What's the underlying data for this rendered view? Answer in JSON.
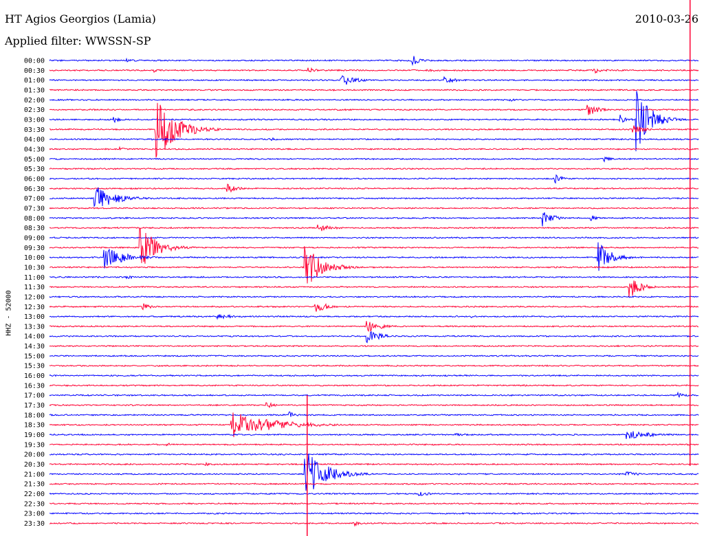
{
  "header": {
    "station": "HT Agios Georgios (Lamia)",
    "date": "2010-03-26",
    "filter": "Applied filter: WWSSN-SP"
  },
  "axis": {
    "channel_label": "HHZ - 52000"
  },
  "colors": {
    "series_a": "#0000ff",
    "series_b": "#ff0033",
    "cursor": "#ff0033"
  },
  "chart_data": {
    "type": "line",
    "title": "HT Agios Georgios (Lamia)",
    "subtitle": "Applied filter: WWSSN-SP",
    "ylabel": "HHZ - 52000",
    "grid": false,
    "rows": [
      "00:00",
      "00:30",
      "01:00",
      "01:30",
      "02:00",
      "02:30",
      "03:00",
      "03:30",
      "04:00",
      "04:30",
      "05:00",
      "05:30",
      "06:00",
      "06:30",
      "07:00",
      "07:30",
      "08:00",
      "08:30",
      "09:00",
      "09:30",
      "10:00",
      "10:30",
      "11:00",
      "11:30",
      "12:00",
      "12:30",
      "13:00",
      "13:30",
      "14:00",
      "14:30",
      "15:00",
      "15:30",
      "16:00",
      "16:30",
      "17:00",
      "17:30",
      "18:00",
      "18:30",
      "19:00",
      "19:30",
      "20:00",
      "20:30",
      "21:00",
      "21:30",
      "22:00",
      "22:30",
      "23:00",
      "23:30"
    ],
    "row_colors_cycle": [
      "blue",
      "red"
    ],
    "events": [
      {
        "row": 0,
        "x": 0.56,
        "amp": 1.0,
        "width": 0.01
      },
      {
        "row": 0,
        "x": 0.12,
        "amp": 0.3,
        "width": 0.02
      },
      {
        "row": 1,
        "x": 0.16,
        "amp": 0.4,
        "width": 0.01
      },
      {
        "row": 1,
        "x": 0.4,
        "amp": 0.6,
        "width": 0.01
      },
      {
        "row": 1,
        "x": 0.58,
        "amp": 0.3,
        "width": 0.02
      },
      {
        "row": 1,
        "x": 0.84,
        "amp": 0.6,
        "width": 0.015
      },
      {
        "row": 2,
        "x": 0.45,
        "amp": 1.2,
        "width": 0.02
      },
      {
        "row": 2,
        "x": 0.61,
        "amp": 0.6,
        "width": 0.02
      },
      {
        "row": 4,
        "x": 0.71,
        "amp": 0.3,
        "width": 0.01
      },
      {
        "row": 5,
        "x": 0.83,
        "amp": 1.2,
        "width": 0.015
      },
      {
        "row": 6,
        "x": 0.1,
        "amp": 0.6,
        "width": 0.01
      },
      {
        "row": 6,
        "x": 0.88,
        "amp": 0.9,
        "width": 0.01
      },
      {
        "row": 6,
        "x": 0.905,
        "amp": 6.0,
        "width": 0.02
      },
      {
        "row": 7,
        "x": 0.165,
        "amp": 5.5,
        "width": 0.03
      },
      {
        "row": 7,
        "x": 0.9,
        "amp": 1.0,
        "width": 0.015
      },
      {
        "row": 8,
        "x": 0.34,
        "amp": 0.4,
        "width": 0.01
      },
      {
        "row": 9,
        "x": 0.11,
        "amp": 0.4,
        "width": 0.01
      },
      {
        "row": 10,
        "x": 0.855,
        "amp": 0.5,
        "width": 0.01
      },
      {
        "row": 12,
        "x": 0.78,
        "amp": 0.8,
        "width": 0.01
      },
      {
        "row": 13,
        "x": 0.275,
        "amp": 0.8,
        "width": 0.015
      },
      {
        "row": 14,
        "x": 0.07,
        "amp": 2.5,
        "width": 0.03
      },
      {
        "row": 16,
        "x": 0.76,
        "amp": 1.8,
        "width": 0.015
      },
      {
        "row": 16,
        "x": 0.835,
        "amp": 0.6,
        "width": 0.01
      },
      {
        "row": 17,
        "x": 0.415,
        "amp": 0.8,
        "width": 0.02
      },
      {
        "row": 19,
        "x": 0.14,
        "amp": 4.0,
        "width": 0.025
      },
      {
        "row": 20,
        "x": 0.085,
        "amp": 2.0,
        "width": 0.03
      },
      {
        "row": 20,
        "x": 0.845,
        "amp": 3.0,
        "width": 0.02
      },
      {
        "row": 21,
        "x": 0.395,
        "amp": 4.0,
        "width": 0.025
      },
      {
        "row": 22,
        "x": 0.12,
        "amp": 0.3,
        "width": 0.02
      },
      {
        "row": 23,
        "x": 0.895,
        "amp": 2.2,
        "width": 0.015
      },
      {
        "row": 25,
        "x": 0.145,
        "amp": 0.8,
        "width": 0.01
      },
      {
        "row": 25,
        "x": 0.41,
        "amp": 1.4,
        "width": 0.015
      },
      {
        "row": 26,
        "x": 0.26,
        "amp": 0.6,
        "width": 0.02
      },
      {
        "row": 26,
        "x": 0.65,
        "amp": 0.3,
        "width": 0.01
      },
      {
        "row": 27,
        "x": 0.49,
        "amp": 1.2,
        "width": 0.02
      },
      {
        "row": 28,
        "x": 0.49,
        "amp": 1.2,
        "width": 0.02
      },
      {
        "row": 34,
        "x": 0.97,
        "amp": 0.5,
        "width": 0.015
      },
      {
        "row": 35,
        "x": 0.335,
        "amp": 0.7,
        "width": 0.01
      },
      {
        "row": 36,
        "x": 0.37,
        "amp": 0.6,
        "width": 0.01
      },
      {
        "row": 37,
        "x": 0.28,
        "amp": 2.5,
        "width": 0.06
      },
      {
        "row": 38,
        "x": 0.625,
        "amp": 0.3,
        "width": 0.02
      },
      {
        "row": 38,
        "x": 0.89,
        "amp": 0.8,
        "width": 0.04
      },
      {
        "row": 39,
        "x": 0.18,
        "amp": 0.4,
        "width": 0.01
      },
      {
        "row": 41,
        "x": 0.24,
        "amp": 0.3,
        "width": 0.03
      },
      {
        "row": 42,
        "x": 0.395,
        "amp": 4.5,
        "width": 0.03
      },
      {
        "row": 42,
        "x": 0.885,
        "amp": 0.8,
        "width": 0.015
      },
      {
        "row": 43,
        "x": 0.795,
        "amp": 0.2,
        "width": 0.015
      },
      {
        "row": 44,
        "x": 0.57,
        "amp": 0.4,
        "width": 0.02
      },
      {
        "row": 45,
        "x": 0.5,
        "amp": 0.2,
        "width": 0.02
      },
      {
        "row": 47,
        "x": 0.47,
        "amp": 0.5,
        "width": 0.01
      }
    ],
    "cursor_lines": [
      0.397,
      0.987
    ]
  }
}
